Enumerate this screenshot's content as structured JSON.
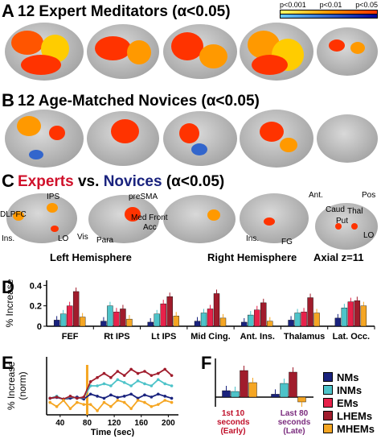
{
  "panelA": {
    "letter": "A",
    "title": "12 Expert Meditators (α<0.05)"
  },
  "pvalue_legend": {
    "labels": [
      "p<0.001",
      "p<0.01",
      "p<0.05"
    ],
    "colors_top": [
      "#ffff66",
      "#ff9900",
      "#ff3300"
    ],
    "colors_bottom": [
      "#66ccff",
      "#3366cc",
      "#000099"
    ]
  },
  "panelB": {
    "letter": "B",
    "title": "12 Age-Matched Novices (α<0.05)"
  },
  "panelC": {
    "letter": "C",
    "title_experts": "Experts",
    "title_vs": " vs. ",
    "title_novices": "Novices",
    "title_alpha": " (α<0.05)",
    "labels": {
      "dlpfc": "DLPFC",
      "ips": "IPS",
      "ins_left": "Ins.",
      "lo_left": "LO",
      "vis": "Vis",
      "para": "Para",
      "presma": "preSMA",
      "medfront": "Med Front",
      "acc": "Acc",
      "ins_right": "Ins.",
      "fg": "FG",
      "ant": "Ant.",
      "pos": "Pos",
      "caud": "Caud",
      "thal": "Thal",
      "put": "Put",
      "lo_axial": "LO"
    },
    "captions": {
      "left": "Left Hemisphere",
      "right": "Right Hemisphere",
      "axial": "Axial z=11"
    }
  },
  "panelD": {
    "letter": "D"
  },
  "panelE": {
    "letter": "E"
  },
  "panelF": {
    "letter": "F",
    "label_early_1": "1st 10",
    "label_early_2": "seconds",
    "label_early_3": "(Early)",
    "label_late_1": "Last 80",
    "label_late_2": "seconds",
    "label_late_3": "(Late)"
  },
  "legend": {
    "items": [
      "NMs",
      "INMs",
      "EMs",
      "LHEMs",
      "MHEMs"
    ],
    "colors": [
      "#1a237e",
      "#4dc3c9",
      "#e8214a",
      "#a01c2c",
      "#f5a623"
    ]
  },
  "chart_data": [
    {
      "type": "bar",
      "ylabel": "% Increase",
      "ylim": [
        0,
        0.45
      ],
      "yticks": [
        0,
        0.2,
        0.4
      ],
      "categories": [
        "FEF",
        "Rt IPS",
        "Lt IPS",
        "Mid Cing.",
        "Ant. Ins.",
        "Thalamus",
        "Lat. Occ."
      ],
      "series": [
        {
          "name": "NMs",
          "values": [
            0.06,
            0.05,
            0.04,
            0.05,
            0.04,
            0.06,
            0.08
          ]
        },
        {
          "name": "INMs",
          "values": [
            0.12,
            0.2,
            0.12,
            0.13,
            0.11,
            0.13,
            0.18
          ]
        },
        {
          "name": "EMs",
          "values": [
            0.2,
            0.14,
            0.22,
            0.17,
            0.16,
            0.14,
            0.24
          ]
        },
        {
          "name": "LHEMs",
          "values": [
            0.34,
            0.17,
            0.29,
            0.32,
            0.23,
            0.28,
            0.25
          ]
        },
        {
          "name": "MHEMs",
          "values": [
            0.09,
            0.07,
            0.1,
            0.08,
            0.05,
            0.13,
            0.2
          ]
        }
      ]
    },
    {
      "type": "line",
      "xlabel": "Time (sec)",
      "ylabel": "% Increase (norm)",
      "xticks": [
        40,
        80,
        120,
        160,
        200
      ],
      "xlim": [
        20,
        215
      ],
      "ylim": [
        -0.4,
        1.0
      ],
      "x": [
        25,
        35,
        45,
        55,
        65,
        75,
        85,
        95,
        105,
        115,
        125,
        135,
        145,
        155,
        165,
        175,
        185,
        195,
        205
      ],
      "series": [
        {
          "name": "NMs",
          "values": [
            0.0,
            0.02,
            -0.02,
            0.0,
            0.03,
            -0.02,
            0.1,
            0.05,
            0.0,
            0.08,
            0.02,
            0.05,
            0.1,
            0.0,
            0.08,
            0.03,
            0.1,
            0.05,
            0.0
          ]
        },
        {
          "name": "INMs",
          "values": [
            0.0,
            0.05,
            -0.03,
            0.04,
            0.0,
            0.02,
            0.3,
            0.3,
            0.35,
            0.3,
            0.45,
            0.38,
            0.3,
            0.42,
            0.35,
            0.3,
            0.45,
            0.35,
            0.3
          ]
        },
        {
          "name": "LHEMs",
          "values": [
            0.0,
            0.03,
            -0.02,
            0.05,
            0.0,
            0.03,
            0.4,
            0.5,
            0.6,
            0.5,
            0.65,
            0.55,
            0.7,
            0.6,
            0.65,
            0.55,
            0.6,
            0.7,
            0.55
          ]
        },
        {
          "name": "MHEMs",
          "values": [
            -0.1,
            -0.2,
            -0.05,
            -0.25,
            -0.1,
            -0.15,
            -0.15,
            -0.3,
            -0.1,
            -0.2,
            -0.05,
            -0.1,
            -0.25,
            -0.05,
            -0.1,
            -0.2,
            -0.15,
            -0.05,
            -0.1
          ]
        }
      ],
      "vline_x": 80
    },
    {
      "type": "bar",
      "categories": [
        "Early",
        "Late"
      ],
      "series": [
        {
          "name": "NMs",
          "values": [
            0.4,
            0.18
          ]
        },
        {
          "name": "INMs",
          "values": [
            0.35,
            0.85
          ]
        },
        {
          "name": "LHEMs",
          "values": [
            1.65,
            1.55
          ]
        },
        {
          "name": "MHEMs",
          "values": [
            0.9,
            -0.3
          ]
        }
      ],
      "ylim": [
        -0.6,
        2.4
      ]
    }
  ]
}
